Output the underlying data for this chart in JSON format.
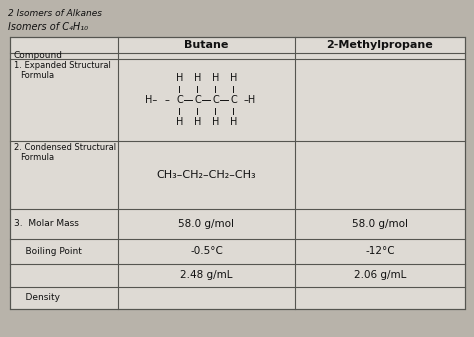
{
  "title1": "2 Isomers of Alkanes",
  "title2": "Isomers of C₄H₁₀",
  "col_header1": "Butane",
  "col_header2": "2-Methylpropane",
  "butane_molar_mass": "58.0 g/mol",
  "butane_boiling": "-0.5°C",
  "butane_density": "2.48 g/mL",
  "methyl_molar_mass": "58.0 g/mol",
  "methyl_boiling": "-12°C",
  "methyl_density": "2.06 g/mL",
  "text_color": "#111111",
  "fig_bg": "#b8b3aa",
  "table_bg": "#dedad4",
  "line_color": "#555550"
}
